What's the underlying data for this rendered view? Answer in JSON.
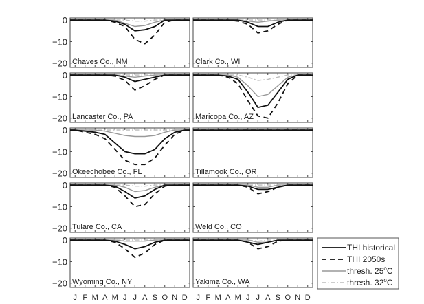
{
  "chart_data": {
    "type": "line",
    "layout": "small-multiples 5x2",
    "x": [
      "J",
      "F",
      "M",
      "A",
      "M",
      "J",
      "J",
      "A",
      "S",
      "O",
      "N",
      "D"
    ],
    "ylim": [
      -22,
      1
    ],
    "yticks": [
      0,
      -10,
      -20
    ],
    "ytick_labels": [
      "0",
      "−10",
      "−20"
    ],
    "grid": false,
    "legend_position": "bottom-right, outside",
    "legend": [
      {
        "name": "THI historical",
        "color": "#111111",
        "style": "solid-thick"
      },
      {
        "name": "THI 2050s",
        "color": "#111111",
        "style": "dashed-thick"
      },
      {
        "name": "thresh. 25",
        "sup": "o",
        "unit": "C",
        "color": "#999999",
        "style": "solid-thin"
      },
      {
        "name": "thresh. 32",
        "sup": "o",
        "unit": "C",
        "color": "#aaaaaa",
        "style": "dash-dot"
      }
    ],
    "panels": [
      {
        "label": "Chaves Co., NM",
        "hist": [
          0,
          0,
          0,
          0,
          -0.5,
          -2,
          -5,
          -4.5,
          -3,
          0,
          0,
          0
        ],
        "future": [
          0,
          0,
          0,
          0,
          -1,
          -3,
          -9,
          -11,
          -7,
          -1,
          0,
          0
        ],
        "t25": [
          0,
          0,
          0,
          0,
          0,
          -1.5,
          -3,
          -2.5,
          -1,
          0,
          0,
          0
        ],
        "t32": [
          0,
          0,
          0,
          0,
          0,
          0,
          -0.5,
          -0.5,
          0,
          0,
          0,
          0
        ]
      },
      {
        "label": "Clark Co., WI",
        "hist": [
          0,
          0,
          0,
          0,
          0,
          -1,
          -3,
          -3,
          -1,
          0,
          0,
          0
        ],
        "future": [
          0,
          0,
          0,
          0,
          -0.5,
          -2,
          -6,
          -5,
          -2,
          0,
          0,
          0
        ],
        "t25": [
          0,
          0,
          0,
          0,
          0,
          -0.5,
          -1,
          -0.5,
          0,
          0,
          0,
          0
        ],
        "t32": [
          0,
          0,
          0,
          0,
          0,
          0,
          0,
          0,
          0,
          0,
          0,
          0
        ]
      },
      {
        "label": "Lancaster Co., PA",
        "hist": [
          0,
          0,
          0,
          0,
          0,
          -1,
          -3,
          -2,
          -1,
          0,
          0,
          0
        ],
        "future": [
          0,
          0,
          0,
          0,
          -0.5,
          -2.5,
          -7,
          -5,
          -2,
          0,
          0,
          0
        ],
        "t25": [
          0,
          0,
          0,
          0,
          0,
          -0.5,
          -1,
          -0.5,
          0,
          0,
          0,
          0
        ],
        "t32": [
          0,
          0,
          0,
          0,
          0,
          0,
          0,
          0,
          0,
          0,
          0,
          0
        ]
      },
      {
        "label": "Maricopa Co., AZ",
        "hist": [
          0,
          0,
          0,
          -0.5,
          -2,
          -8,
          -15,
          -14,
          -8,
          -2,
          0,
          0
        ],
        "future": [
          0,
          0,
          0,
          -1,
          -4,
          -12,
          -19,
          -20,
          -13,
          -4,
          0,
          0
        ],
        "t25": [
          0,
          0,
          0,
          0,
          -1,
          -5,
          -10,
          -9,
          -5,
          -1,
          0,
          0
        ],
        "t32": [
          0,
          0,
          0,
          0,
          0,
          -1,
          -2.5,
          -2,
          -1,
          0,
          0,
          0
        ]
      },
      {
        "label": "Okeechobee Co., FL",
        "hist": [
          0,
          -0.5,
          -1,
          -2,
          -6,
          -10,
          -11,
          -11,
          -9,
          -4,
          -1,
          0
        ],
        "future": [
          0,
          -1,
          -2,
          -4,
          -9,
          -14,
          -16,
          -16,
          -13,
          -7,
          -2,
          0
        ],
        "t25": [
          0,
          0,
          0,
          -0.5,
          -1.5,
          -2.5,
          -3,
          -3,
          -2.5,
          -1,
          0,
          0
        ],
        "t32": [
          0,
          0,
          0,
          0,
          0,
          0,
          0,
          0,
          0,
          0,
          0,
          0
        ]
      },
      {
        "label": "Tillamook Co., OR",
        "hist": [
          0,
          0,
          0,
          0,
          0,
          0,
          0,
          0,
          0,
          0,
          0,
          0
        ],
        "future": [
          0,
          0,
          0,
          0,
          0,
          0,
          0,
          0,
          0,
          0,
          0,
          0
        ],
        "t25": [
          0,
          0,
          0,
          0,
          0,
          0,
          0,
          0,
          0,
          0,
          0,
          0
        ],
        "t32": [
          0,
          0,
          0,
          0,
          0,
          0,
          0,
          0,
          0,
          0,
          0,
          0
        ]
      },
      {
        "label": "Tulare Co., CA",
        "hist": [
          0,
          0,
          0,
          0,
          -0.5,
          -3,
          -6,
          -5,
          -2,
          0,
          0,
          0
        ],
        "future": [
          0,
          0,
          0,
          0,
          -1,
          -5,
          -10,
          -9,
          -4,
          -0.5,
          0,
          0
        ],
        "t25": [
          0,
          0,
          0,
          0,
          0,
          -1,
          -3,
          -2.5,
          -1,
          0,
          0,
          0
        ],
        "t32": [
          0,
          0,
          0,
          0,
          0,
          0,
          -0.5,
          -0.5,
          0,
          0,
          0,
          0
        ]
      },
      {
        "label": "Weld Co., CO",
        "hist": [
          0,
          0,
          0,
          0,
          0,
          -0.5,
          -2,
          -2,
          -1,
          0,
          0,
          0
        ],
        "future": [
          0,
          0,
          0,
          0,
          0,
          -1,
          -4,
          -3,
          -1,
          0,
          0,
          0
        ],
        "t25": [
          0,
          0,
          0,
          0,
          0,
          0,
          -1,
          -1,
          0,
          0,
          0,
          0
        ],
        "t32": [
          0,
          0,
          0,
          0,
          0,
          0,
          0,
          0,
          0,
          0,
          0,
          0
        ]
      },
      {
        "label": "Wyoming Co., NY",
        "hist": [
          0,
          0,
          0,
          0,
          -0.5,
          -2,
          -4,
          -3,
          -1,
          0,
          0,
          0
        ],
        "future": [
          0,
          0,
          0,
          0,
          -1,
          -4,
          -8,
          -6,
          -2,
          0,
          0,
          0
        ],
        "t25": [
          0,
          0,
          0,
          0,
          0,
          -0.5,
          -0.5,
          -0.5,
          0,
          0,
          0,
          0
        ],
        "t32": [
          0,
          0,
          0,
          0,
          0,
          0,
          0,
          0,
          0,
          0,
          0,
          0
        ]
      },
      {
        "label": "Yakima Co., WA",
        "hist": [
          0,
          0,
          0,
          0,
          0,
          -1,
          -2,
          -1,
          0,
          0,
          0,
          0
        ],
        "future": [
          0,
          0,
          0,
          0,
          0,
          -1,
          -4,
          -3,
          -0.5,
          0,
          0,
          0
        ],
        "t25": [
          0,
          0,
          0,
          0,
          0,
          0,
          -1,
          -1,
          0,
          0,
          0,
          0
        ],
        "t32": [
          0,
          0,
          0,
          0,
          0,
          0,
          -0.5,
          0,
          0,
          0,
          0,
          0
        ]
      }
    ]
  }
}
